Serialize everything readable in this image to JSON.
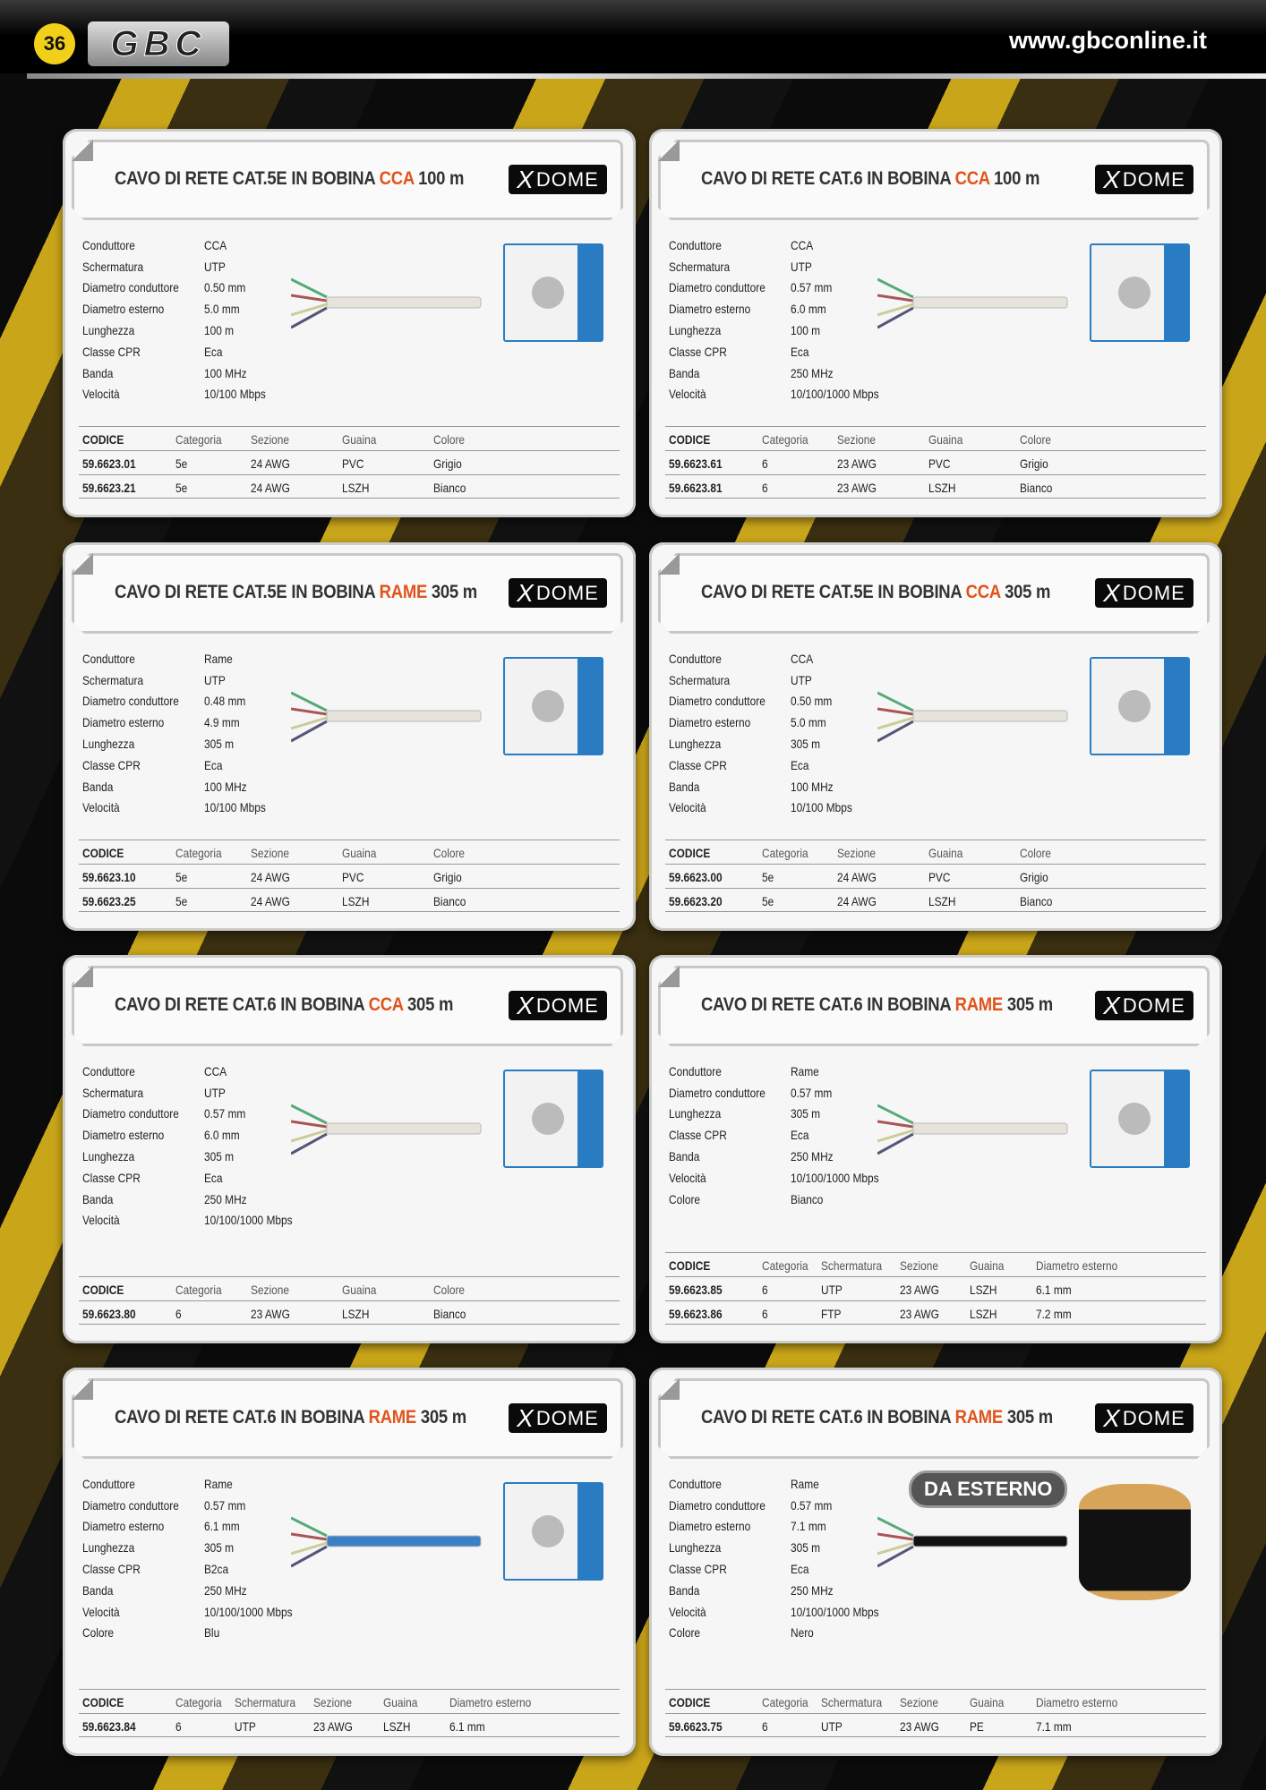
{
  "header": {
    "page_number": "36",
    "logo": "GBC",
    "url": "www.gbconline.it"
  },
  "colors": {
    "accent": "#e0541b",
    "brand_yellow": "#f2d01a"
  },
  "brand": "DOME",
  "cards": [
    {
      "title": [
        "CAVO DI RETE CAT.5E IN BOBINA ",
        "CCA",
        " 100 m"
      ],
      "image": "box",
      "specs": [
        [
          "Conduttore",
          "CCA"
        ],
        [
          "Schermatura",
          "UTP"
        ],
        [
          "Diametro conduttore",
          "0.50 mm"
        ],
        [
          "Diametro esterno",
          "5.0 mm"
        ],
        [
          "Lunghezza",
          "100 m"
        ],
        [
          "Classe CPR",
          "Eca"
        ],
        [
          "Banda",
          "100 MHz"
        ],
        [
          "Velocità",
          "10/100 Mbps"
        ]
      ],
      "columns": [
        "CODICE",
        "Categoria",
        "Sezione",
        "Guaina",
        "Colore"
      ],
      "rows": [
        [
          "59.6623.01",
          "5e",
          "24 AWG",
          "PVC",
          "Grigio"
        ],
        [
          "59.6623.21",
          "5e",
          "24 AWG",
          "LSZH",
          "Bianco"
        ]
      ]
    },
    {
      "title": [
        "CAVO DI RETE CAT.6 IN BOBINA ",
        "CCA",
        " 100 m"
      ],
      "image": "box",
      "specs": [
        [
          "Conduttore",
          "CCA"
        ],
        [
          "Schermatura",
          "UTP"
        ],
        [
          "Diametro conduttore",
          "0.57 mm"
        ],
        [
          "Diametro esterno",
          "6.0 mm"
        ],
        [
          "Lunghezza",
          "100 m"
        ],
        [
          "Classe CPR",
          "Eca"
        ],
        [
          "Banda",
          "250 MHz"
        ],
        [
          "Velocità",
          "10/100/1000 Mbps"
        ]
      ],
      "columns": [
        "CODICE",
        "Categoria",
        "Sezione",
        "Guaina",
        "Colore"
      ],
      "rows": [
        [
          "59.6623.61",
          "6",
          "23 AWG",
          "PVC",
          "Grigio"
        ],
        [
          "59.6623.81",
          "6",
          "23 AWG",
          "LSZH",
          "Bianco"
        ]
      ]
    },
    {
      "title": [
        "CAVO DI RETE CAT.5E IN BOBINA ",
        "RAME",
        " 305 m"
      ],
      "image": "box",
      "specs": [
        [
          "Conduttore",
          "Rame"
        ],
        [
          "Schermatura",
          "UTP"
        ],
        [
          "Diametro conduttore",
          "0.48 mm"
        ],
        [
          "Diametro esterno",
          "4.9 mm"
        ],
        [
          "Lunghezza",
          "305 m"
        ],
        [
          "Classe CPR",
          "Eca"
        ],
        [
          "Banda",
          "100 MHz"
        ],
        [
          "Velocità",
          "10/100 Mbps"
        ]
      ],
      "columns": [
        "CODICE",
        "Categoria",
        "Sezione",
        "Guaina",
        "Colore"
      ],
      "rows": [
        [
          "59.6623.10",
          "5e",
          "24 AWG",
          "PVC",
          "Grigio"
        ],
        [
          "59.6623.25",
          "5e",
          "24 AWG",
          "LSZH",
          "Bianco"
        ]
      ]
    },
    {
      "title": [
        "CAVO DI RETE CAT.5E IN BOBINA ",
        "CCA",
        " 305 m"
      ],
      "image": "box",
      "specs": [
        [
          "Conduttore",
          "CCA"
        ],
        [
          "Schermatura",
          "UTP"
        ],
        [
          "Diametro conduttore",
          "0.50 mm"
        ],
        [
          "Diametro esterno",
          "5.0 mm"
        ],
        [
          "Lunghezza",
          "305 m"
        ],
        [
          "Classe CPR",
          "Eca"
        ],
        [
          "Banda",
          "100 MHz"
        ],
        [
          "Velocità",
          "10/100 Mbps"
        ]
      ],
      "columns": [
        "CODICE",
        "Categoria",
        "Sezione",
        "Guaina",
        "Colore"
      ],
      "rows": [
        [
          "59.6623.00",
          "5e",
          "24 AWG",
          "PVC",
          "Grigio"
        ],
        [
          "59.6623.20",
          "5e",
          "24 AWG",
          "LSZH",
          "Bianco"
        ]
      ]
    },
    {
      "title": [
        "CAVO DI RETE CAT.6 IN BOBINA ",
        "CCA",
        " 305 m"
      ],
      "image": "box",
      "specs": [
        [
          "Conduttore",
          "CCA"
        ],
        [
          "Schermatura",
          "UTP"
        ],
        [
          "Diametro conduttore",
          "0.57 mm"
        ],
        [
          "Diametro esterno",
          "6.0 mm"
        ],
        [
          "Lunghezza",
          "305 m"
        ],
        [
          "Classe CPR",
          "Eca"
        ],
        [
          "Banda",
          "250 MHz"
        ],
        [
          "Velocità",
          "10/100/1000 Mbps"
        ]
      ],
      "columns": [
        "CODICE",
        "Categoria",
        "Sezione",
        "Guaina",
        "Colore"
      ],
      "rows": [
        [
          "59.6623.80",
          "6",
          "23 AWG",
          "LSZH",
          "Bianco"
        ]
      ]
    },
    {
      "title": [
        "CAVO DI RETE CAT.6 IN BOBINA ",
        "RAME",
        " 305 m"
      ],
      "image": "box",
      "specs": [
        [
          "Conduttore",
          "Rame"
        ],
        [
          "Diametro conduttore",
          "0.57 mm"
        ],
        [
          "Lunghezza",
          "305 m"
        ],
        [
          "Classe CPR",
          "Eca"
        ],
        [
          "Banda",
          "250 MHz"
        ],
        [
          "Velocità",
          "10/100/1000 Mbps"
        ],
        [
          "Colore",
          "Bianco"
        ]
      ],
      "columns": [
        "CODICE",
        "Categoria",
        "Schermatura",
        "Sezione",
        "Guaina",
        "Diametro esterno"
      ],
      "rows": [
        [
          "59.6623.85",
          "6",
          "UTP",
          "23 AWG",
          "LSZH",
          "6.1 mm"
        ],
        [
          "59.6623.86",
          "6",
          "FTP",
          "23 AWG",
          "LSZH",
          "7.2 mm"
        ]
      ]
    },
    {
      "title": [
        "CAVO DI RETE CAT.6 IN BOBINA ",
        "RAME",
        " 305 m"
      ],
      "image": "box",
      "cable_color": "#3d7fc4",
      "specs": [
        [
          "Conduttore",
          "Rame"
        ],
        [
          "Diametro conduttore",
          "0.57 mm"
        ],
        [
          "Diametro esterno",
          "6.1 mm"
        ],
        [
          "Lunghezza",
          "305 m"
        ],
        [
          "Classe CPR",
          "B2ca"
        ],
        [
          "Banda",
          "250 MHz"
        ],
        [
          "Velocità",
          "10/100/1000 Mbps"
        ],
        [
          "Colore",
          "Blu"
        ]
      ],
      "columns": [
        "CODICE",
        "Categoria",
        "Schermatura",
        "Sezione",
        "Guaina",
        "Diametro esterno"
      ],
      "rows": [
        [
          "59.6623.84",
          "6",
          "UTP",
          "23 AWG",
          "LSZH",
          "6.1 mm"
        ]
      ]
    },
    {
      "title": [
        "CAVO DI RETE CAT.6 IN BOBINA ",
        "RAME",
        " 305 m"
      ],
      "image": "spool",
      "badge": "DA ESTERNO",
      "cable_color": "#111111",
      "specs": [
        [
          "Conduttore",
          "Rame"
        ],
        [
          "Diametro conduttore",
          "0.57 mm"
        ],
        [
          "Diametro esterno",
          "7.1 mm"
        ],
        [
          "Lunghezza",
          "305 m"
        ],
        [
          "Classe CPR",
          "Eca"
        ],
        [
          "Banda",
          "250 MHz"
        ],
        [
          "Velocità",
          "10/100/1000 Mbps"
        ],
        [
          "Colore",
          "Nero"
        ]
      ],
      "columns": [
        "CODICE",
        "Categoria",
        "Schermatura",
        "Sezione",
        "Guaina",
        "Diametro esterno"
      ],
      "rows": [
        [
          "59.6623.75",
          "6",
          "UTP",
          "23 AWG",
          "PE",
          "7.1 mm"
        ]
      ]
    }
  ]
}
